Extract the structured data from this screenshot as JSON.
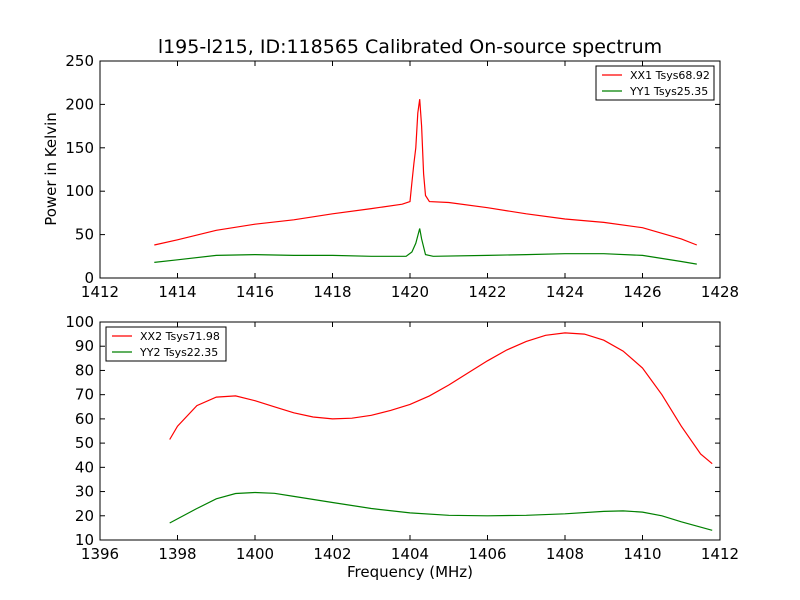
{
  "chart_data": [
    {
      "type": "line",
      "title": "l195-l215, ID:118565 Calibrated On-source spectrum",
      "xlabel": "",
      "ylabel": "Power in Kelvin",
      "xlim": [
        1412,
        1428
      ],
      "ylim": [
        0,
        250
      ],
      "xticks": [
        1412,
        1414,
        1416,
        1418,
        1420,
        1422,
        1424,
        1426,
        1428
      ],
      "yticks": [
        0,
        50,
        100,
        150,
        200,
        250
      ],
      "grid": false,
      "legend_position": "upper right",
      "series": [
        {
          "name": "XX1 Tsys68.92",
          "color": "#ff0000",
          "points": [
            [
              1413.4,
              38
            ],
            [
              1414.0,
              44
            ],
            [
              1415.0,
              55
            ],
            [
              1416.0,
              62
            ],
            [
              1417.0,
              67
            ],
            [
              1418.0,
              74
            ],
            [
              1419.0,
              80
            ],
            [
              1419.8,
              85
            ],
            [
              1420.0,
              88
            ],
            [
              1420.05,
              110
            ],
            [
              1420.1,
              132
            ],
            [
              1420.15,
              150
            ],
            [
              1420.2,
              190
            ],
            [
              1420.25,
              206
            ],
            [
              1420.3,
              175
            ],
            [
              1420.35,
              120
            ],
            [
              1420.4,
              95
            ],
            [
              1420.5,
              88
            ],
            [
              1421.0,
              87
            ],
            [
              1422.0,
              81
            ],
            [
              1423.0,
              74
            ],
            [
              1424.0,
              68
            ],
            [
              1425.0,
              64
            ],
            [
              1426.0,
              58
            ],
            [
              1427.0,
              45
            ],
            [
              1427.4,
              38
            ]
          ]
        },
        {
          "name": "YY1 Tsys25.35",
          "color": "#008000",
          "points": [
            [
              1413.4,
              18
            ],
            [
              1414.0,
              21
            ],
            [
              1415.0,
              26
            ],
            [
              1416.0,
              27
            ],
            [
              1417.0,
              26
            ],
            [
              1418.0,
              26
            ],
            [
              1419.0,
              25
            ],
            [
              1419.9,
              25
            ],
            [
              1420.05,
              30
            ],
            [
              1420.15,
              40
            ],
            [
              1420.25,
              57
            ],
            [
              1420.3,
              45
            ],
            [
              1420.4,
              27
            ],
            [
              1420.6,
              25
            ],
            [
              1422.0,
              26
            ],
            [
              1423.0,
              27
            ],
            [
              1424.0,
              28
            ],
            [
              1425.0,
              28
            ],
            [
              1426.0,
              26
            ],
            [
              1427.0,
              19
            ],
            [
              1427.4,
              16
            ]
          ]
        }
      ]
    },
    {
      "type": "line",
      "title": "",
      "xlabel": "Frequency (MHz)",
      "ylabel": "",
      "xlim": [
        1396,
        1412
      ],
      "ylim": [
        10,
        100
      ],
      "xticks": [
        1396,
        1398,
        1400,
        1402,
        1404,
        1406,
        1408,
        1410,
        1412
      ],
      "yticks": [
        10,
        20,
        30,
        40,
        50,
        60,
        70,
        80,
        90,
        100
      ],
      "grid": false,
      "legend_position": "upper left",
      "series": [
        {
          "name": "XX2 Tsys71.98",
          "color": "#ff0000",
          "points": [
            [
              1397.8,
              51.5
            ],
            [
              1398.0,
              57
            ],
            [
              1398.5,
              65.5
            ],
            [
              1399.0,
              69
            ],
            [
              1399.5,
              69.5
            ],
            [
              1400.0,
              67.5
            ],
            [
              1400.5,
              65
            ],
            [
              1401.0,
              62.5
            ],
            [
              1401.5,
              60.8
            ],
            [
              1402.0,
              60
            ],
            [
              1402.5,
              60.3
            ],
            [
              1403.0,
              61.5
            ],
            [
              1403.5,
              63.5
            ],
            [
              1404.0,
              66
            ],
            [
              1404.5,
              69.5
            ],
            [
              1405.0,
              74
            ],
            [
              1405.5,
              79
            ],
            [
              1406.0,
              84
            ],
            [
              1406.5,
              88.5
            ],
            [
              1407.0,
              92
            ],
            [
              1407.5,
              94.5
            ],
            [
              1408.0,
              95.5
            ],
            [
              1408.5,
              95
            ],
            [
              1409.0,
              92.5
            ],
            [
              1409.5,
              88
            ],
            [
              1410.0,
              81
            ],
            [
              1410.5,
              70
            ],
            [
              1411.0,
              57
            ],
            [
              1411.5,
              45.5
            ],
            [
              1411.8,
              41.5
            ]
          ]
        },
        {
          "name": "YY2 Tsys22.35",
          "color": "#008000",
          "points": [
            [
              1397.8,
              17
            ],
            [
              1398.5,
              23
            ],
            [
              1399.0,
              27
            ],
            [
              1399.5,
              29.2
            ],
            [
              1400.0,
              29.6
            ],
            [
              1400.5,
              29.3
            ],
            [
              1401.0,
              28
            ],
            [
              1402.0,
              25.5
            ],
            [
              1403.0,
              23
            ],
            [
              1404.0,
              21.2
            ],
            [
              1405.0,
              20.2
            ],
            [
              1406.0,
              20
            ],
            [
              1407.0,
              20.2
            ],
            [
              1408.0,
              20.8
            ],
            [
              1409.0,
              21.8
            ],
            [
              1409.5,
              22
            ],
            [
              1410.0,
              21.5
            ],
            [
              1410.5,
              20
            ],
            [
              1411.0,
              17.5
            ],
            [
              1411.8,
              14
            ]
          ]
        }
      ]
    }
  ]
}
